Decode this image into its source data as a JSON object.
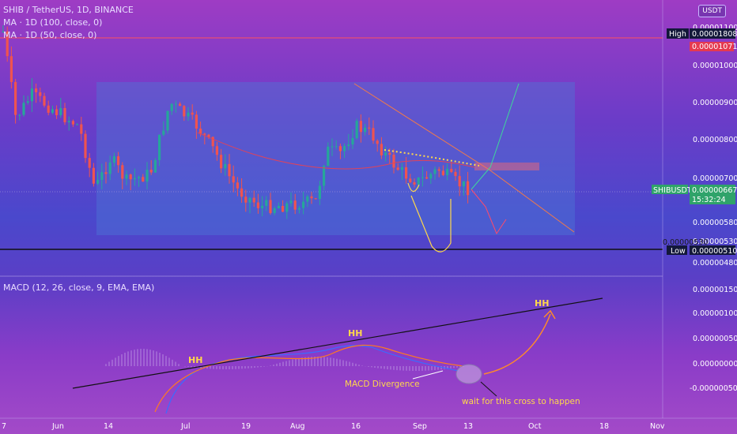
{
  "header": {
    "symbol_line": "SHIB / TetherUS, 1D, BINANCE",
    "ma1": "MA · 1D (100, close, 0)",
    "ma2": "MA · 1D (50, close, 0)",
    "currency_button": "USDT"
  },
  "price_axis": {
    "ticks": [
      "0.00001100",
      "0.00001000",
      "0.00000900",
      "0.00000800",
      "0.00000700",
      "0.00000580",
      "0.00000530",
      "0.00000480"
    ],
    "high_label": "High",
    "high_value": "0.00001808",
    "overlap_value": "0.00001071",
    "low_label": "Low",
    "low_value": "0.00000510",
    "current_symbol": "SHIBUSDT",
    "current_price": "0.00000667",
    "countdown": "15:32:24",
    "cut_label": "0.00000530"
  },
  "macd": {
    "legend": "MACD (12, 26, close, 9, EMA, EMA)",
    "ticks": [
      "0.00000150",
      "0.00000100",
      "0.00000050",
      "0.00000000",
      "-0.00000050"
    ],
    "annotations": {
      "hh1": "HH",
      "hh2": "HH",
      "hh3": "HH",
      "divergence": "MACD Divergence",
      "wait": "wait for this cross to happen"
    }
  },
  "time_axis": [
    "7",
    "Jun",
    "14",
    "Jul",
    "19",
    "Aug",
    "16",
    "Sep",
    "13",
    "Oct",
    "18",
    "Nov"
  ],
  "colors": {
    "up": "#26a69a",
    "down": "#ef5350",
    "box": "#5a7fd6",
    "macd_line": "#2962ff",
    "signal_line": "#ff6d00"
  },
  "chart_data": {
    "type": "candlestick",
    "title": "SHIB / TetherUS, 1D, BINANCE",
    "ylim": [
      4.8e-06,
      1.11e-05
    ],
    "box": {
      "top": 9.5e-06,
      "bottom": 5.4e-06
    },
    "high": 1.808e-05,
    "low": 5.1e-06,
    "last": 6.67e-06,
    "macd_ylim": [
      -5e-07,
      1.5e-06
    ]
  }
}
